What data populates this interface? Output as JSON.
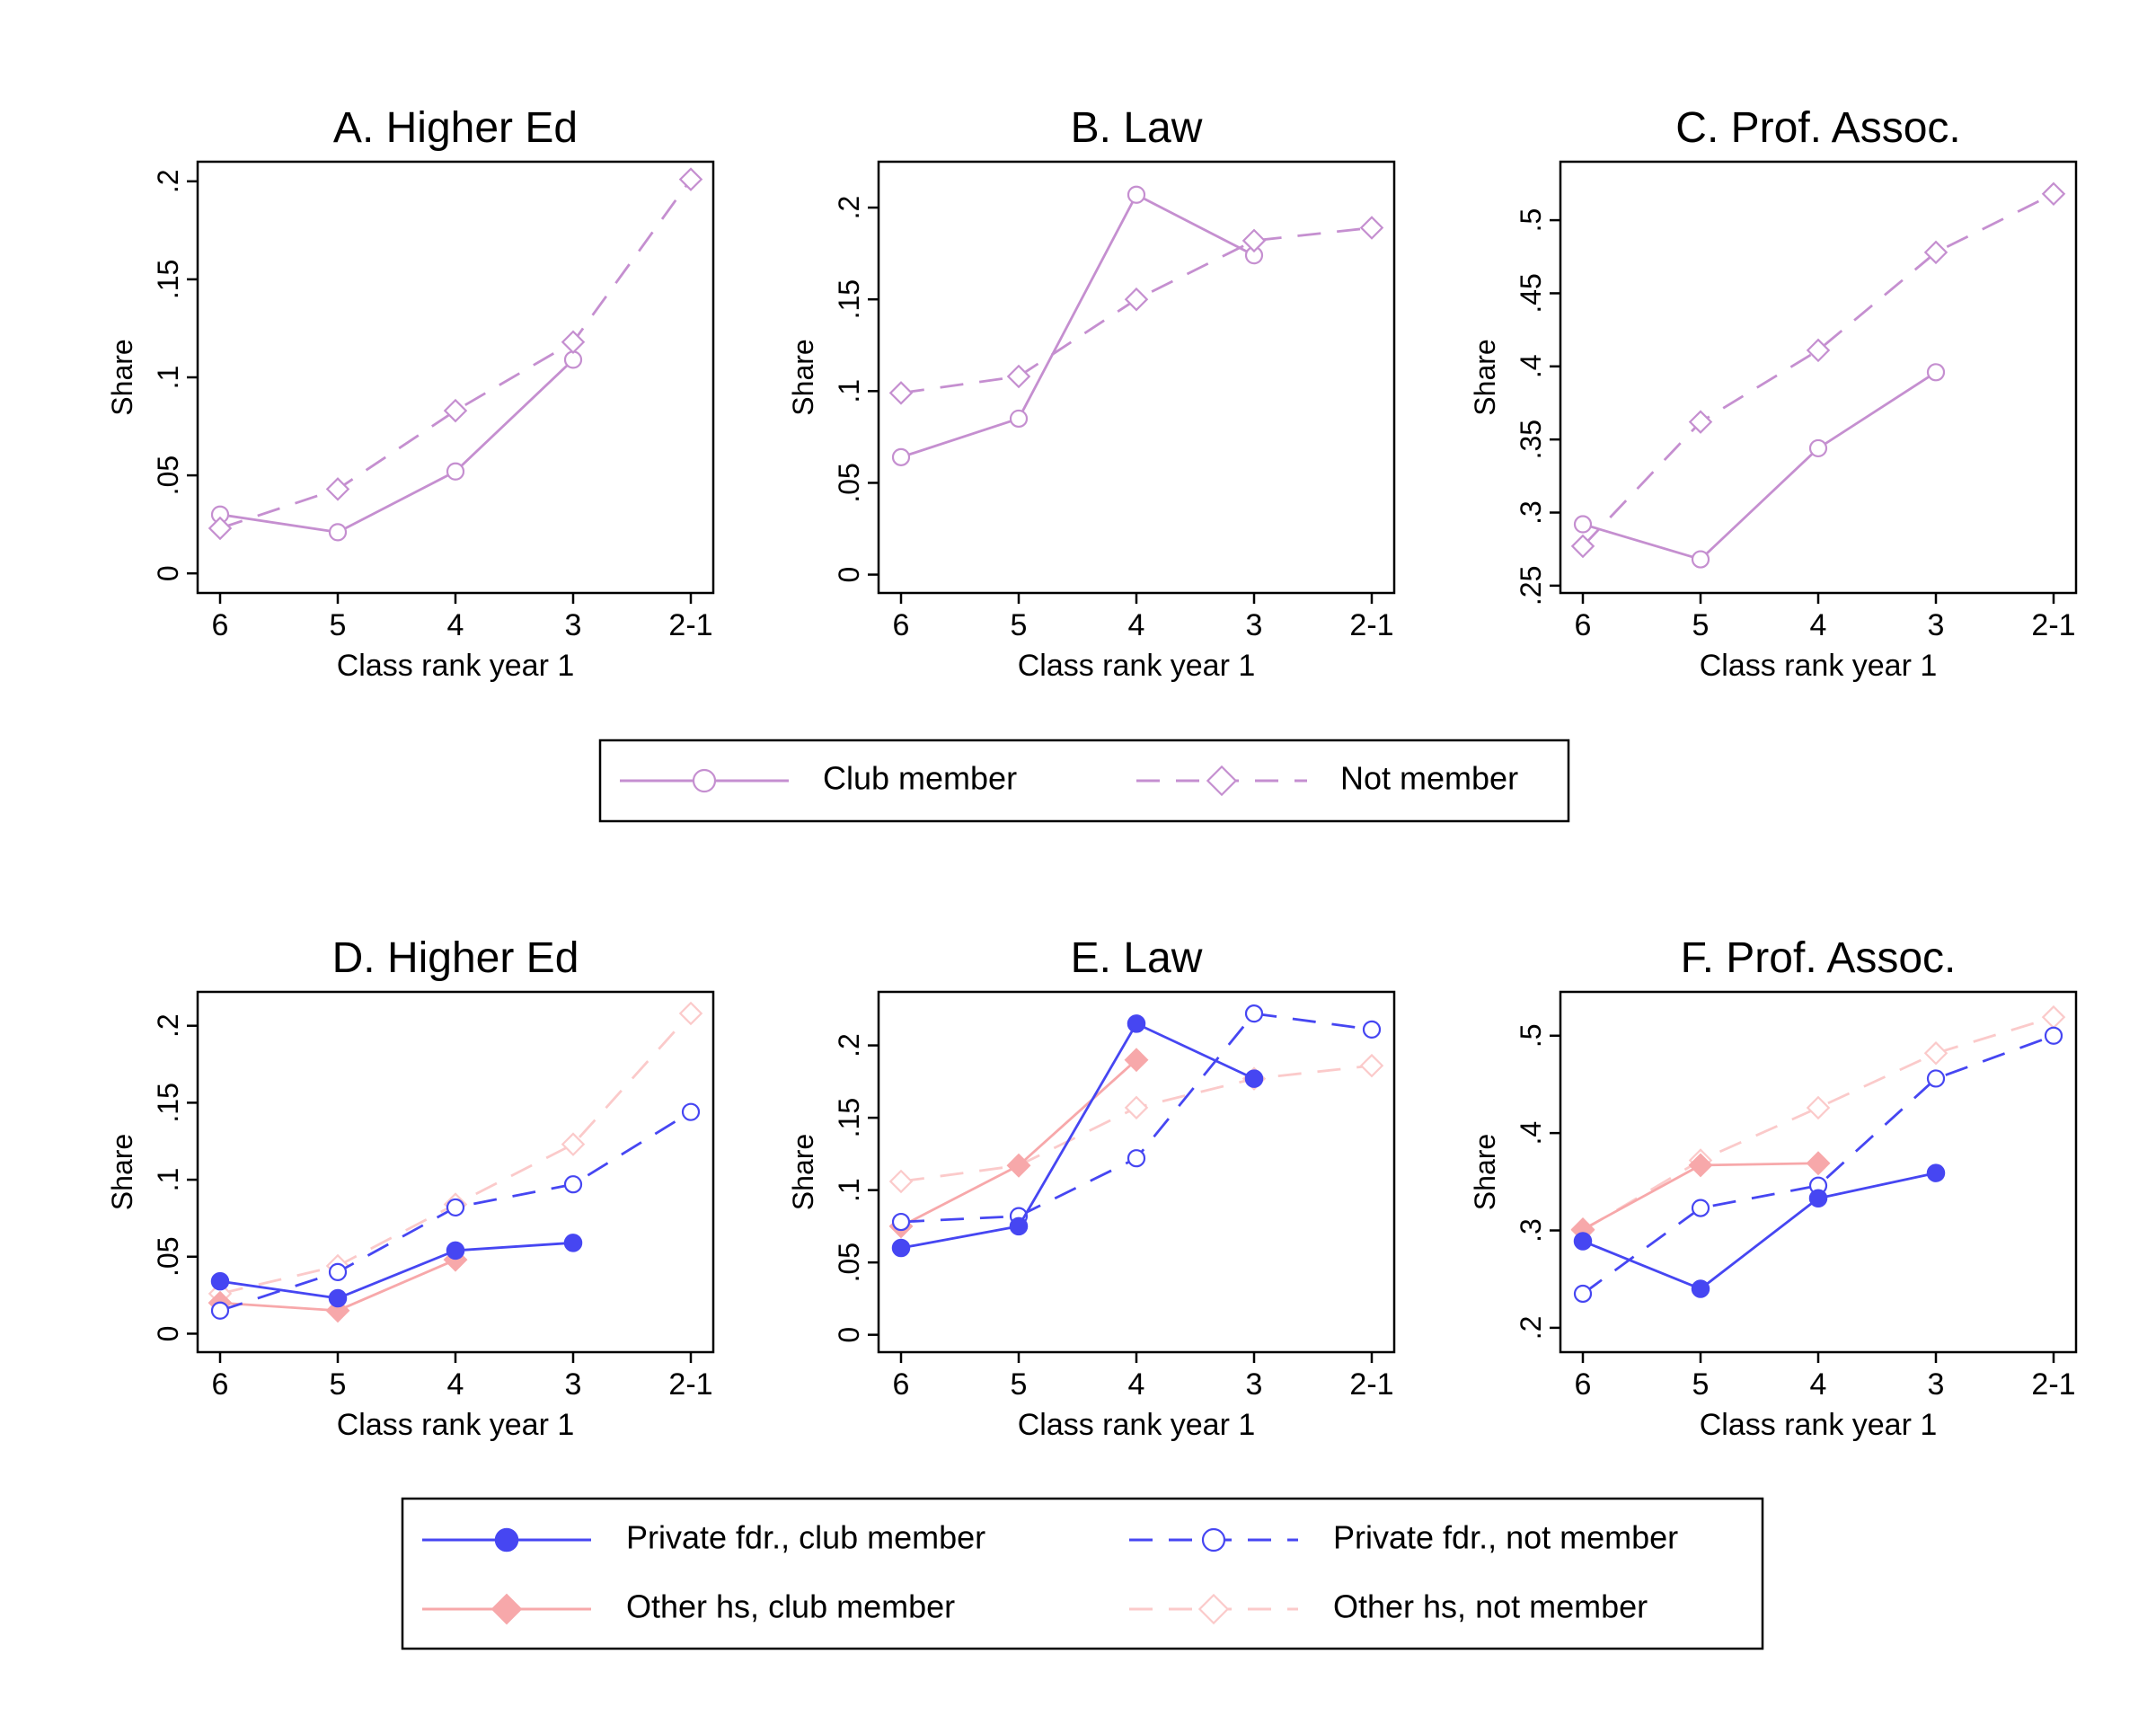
{
  "chart_data": [
    {
      "type": "line",
      "panel": "A",
      "title": "A. Higher Ed",
      "xlabel": "Class rank year 1",
      "ylabel": "Share",
      "categories": [
        "6",
        "5",
        "4",
        "3",
        "2-1"
      ],
      "ylim": [
        -0.01,
        0.21
      ],
      "yticks": [
        0,
        0.05,
        0.1,
        0.15,
        0.2
      ],
      "ytick_labels": [
        "0",
        ".05",
        ".1",
        ".15",
        ".2"
      ],
      "series": [
        {
          "style": "club",
          "values": [
            0.03,
            0.021,
            0.052,
            0.109,
            null
          ]
        },
        {
          "style": "notmember",
          "values": [
            0.023,
            0.043,
            0.083,
            0.118,
            0.201
          ]
        }
      ]
    },
    {
      "type": "line",
      "panel": "B",
      "title": "B. Law",
      "xlabel": "Class rank year 1",
      "ylabel": "Share",
      "categories": [
        "6",
        "5",
        "4",
        "3",
        "2-1"
      ],
      "ylim": [
        -0.01,
        0.225
      ],
      "yticks": [
        0,
        0.05,
        0.1,
        0.15,
        0.2
      ],
      "ytick_labels": [
        "0",
        ".05",
        ".1",
        ".15",
        ".2"
      ],
      "series": [
        {
          "style": "club",
          "values": [
            0.064,
            0.085,
            0.207,
            0.174,
            null
          ]
        },
        {
          "style": "notmember",
          "values": [
            0.099,
            0.108,
            0.15,
            0.182,
            0.189
          ]
        }
      ]
    },
    {
      "type": "line",
      "panel": "C",
      "title": "C. Prof. Assoc.",
      "xlabel": "Class rank year 1",
      "ylabel": "Share",
      "categories": [
        "6",
        "5",
        "4",
        "3",
        "2-1"
      ],
      "ylim": [
        0.245,
        0.54
      ],
      "yticks": [
        0.25,
        0.3,
        0.35,
        0.4,
        0.45,
        0.5
      ],
      "ytick_labels": [
        ".25",
        ".3",
        ".35",
        ".4",
        ".45",
        ".5"
      ],
      "series": [
        {
          "style": "club",
          "values": [
            0.292,
            0.268,
            0.344,
            0.396,
            null
          ]
        },
        {
          "style": "notmember",
          "values": [
            0.277,
            0.362,
            0.411,
            0.478,
            0.518
          ]
        }
      ]
    },
    {
      "type": "line",
      "panel": "D",
      "title": "D. Higher Ed",
      "xlabel": "Class rank year 1",
      "ylabel": "Share",
      "categories": [
        "6",
        "5",
        "4",
        "3",
        "2-1"
      ],
      "ylim": [
        -0.012,
        0.222
      ],
      "yticks": [
        0,
        0.05,
        0.1,
        0.15,
        0.2
      ],
      "ytick_labels": [
        "0",
        ".05",
        ".1",
        ".15",
        ".2"
      ],
      "series": [
        {
          "style": "other_not",
          "values": [
            0.026,
            0.044,
            0.084,
            0.123,
            0.208
          ]
        },
        {
          "style": "other_club",
          "values": [
            0.02,
            0.015,
            0.048,
            null,
            null
          ]
        },
        {
          "style": "private_not",
          "values": [
            0.015,
            0.04,
            0.082,
            0.097,
            0.144
          ]
        },
        {
          "style": "private_club",
          "values": [
            0.034,
            0.023,
            0.054,
            0.059,
            null
          ]
        }
      ]
    },
    {
      "type": "line",
      "panel": "E",
      "title": "E. Law",
      "xlabel": "Class rank year 1",
      "ylabel": "Share",
      "categories": [
        "6",
        "5",
        "4",
        "3",
        "2-1"
      ],
      "ylim": [
        -0.012,
        0.237
      ],
      "yticks": [
        0,
        0.05,
        0.1,
        0.15,
        0.2
      ],
      "ytick_labels": [
        "0",
        ".05",
        ".1",
        ".15",
        ".2"
      ],
      "series": [
        {
          "style": "other_not",
          "values": [
            0.106,
            0.117,
            0.157,
            0.177,
            0.186
          ]
        },
        {
          "style": "other_club",
          "values": [
            0.075,
            0.117,
            0.19,
            null,
            null
          ]
        },
        {
          "style": "private_not",
          "values": [
            0.078,
            0.082,
            0.122,
            0.222,
            0.211
          ]
        },
        {
          "style": "private_club",
          "values": [
            0.06,
            0.075,
            0.215,
            0.177,
            null
          ]
        }
      ]
    },
    {
      "type": "line",
      "panel": "F",
      "title": "F. Prof. Assoc.",
      "xlabel": "Class rank year 1",
      "ylabel": "Share",
      "categories": [
        "6",
        "5",
        "4",
        "3",
        "2-1"
      ],
      "ylim": [
        0.175,
        0.545
      ],
      "yticks": [
        0.2,
        0.3,
        0.4,
        0.5
      ],
      "ytick_labels": [
        ".2",
        ".3",
        ".4",
        ".5"
      ],
      "series": [
        {
          "style": "other_not",
          "values": [
            0.3,
            0.372,
            0.426,
            0.482,
            0.519
          ]
        },
        {
          "style": "other_club",
          "values": [
            0.301,
            0.367,
            0.369,
            null,
            null
          ]
        },
        {
          "style": "private_not",
          "values": [
            0.235,
            0.323,
            0.346,
            0.456,
            0.5
          ]
        },
        {
          "style": "private_club",
          "values": [
            0.289,
            0.24,
            0.333,
            0.359,
            null
          ]
        }
      ]
    }
  ],
  "legend_top": {
    "placement": "below row 1",
    "items": [
      {
        "style": "club",
        "label": "Club member"
      },
      {
        "style": "notmember",
        "label": "Not member"
      }
    ]
  },
  "legend_bottom": {
    "placement": "below row 2",
    "items": [
      {
        "style": "private_club",
        "label": "Private fdr., club member"
      },
      {
        "style": "private_not",
        "label": "Private fdr., not member"
      },
      {
        "style": "other_club",
        "label": "Other hs, club member"
      },
      {
        "style": "other_not",
        "label": "Other hs, not member"
      }
    ]
  },
  "series_styles": {
    "club": {
      "color": "#c58fd0",
      "dash": "solid",
      "marker": "circle-hollow"
    },
    "notmember": {
      "color": "#c58fd0",
      "dash": "dashed",
      "marker": "diamond-hollow"
    },
    "private_club": {
      "color": "#4646f2",
      "dash": "solid",
      "marker": "circle-filled"
    },
    "private_not": {
      "color": "#4646f2",
      "dash": "dashed",
      "marker": "circle-hollow"
    },
    "other_club": {
      "color": "#f7a8aa",
      "dash": "solid",
      "marker": "diamond-filled"
    },
    "other_not": {
      "color": "#fbcaca",
      "dash": "dashed",
      "marker": "diamond-hollow"
    }
  }
}
